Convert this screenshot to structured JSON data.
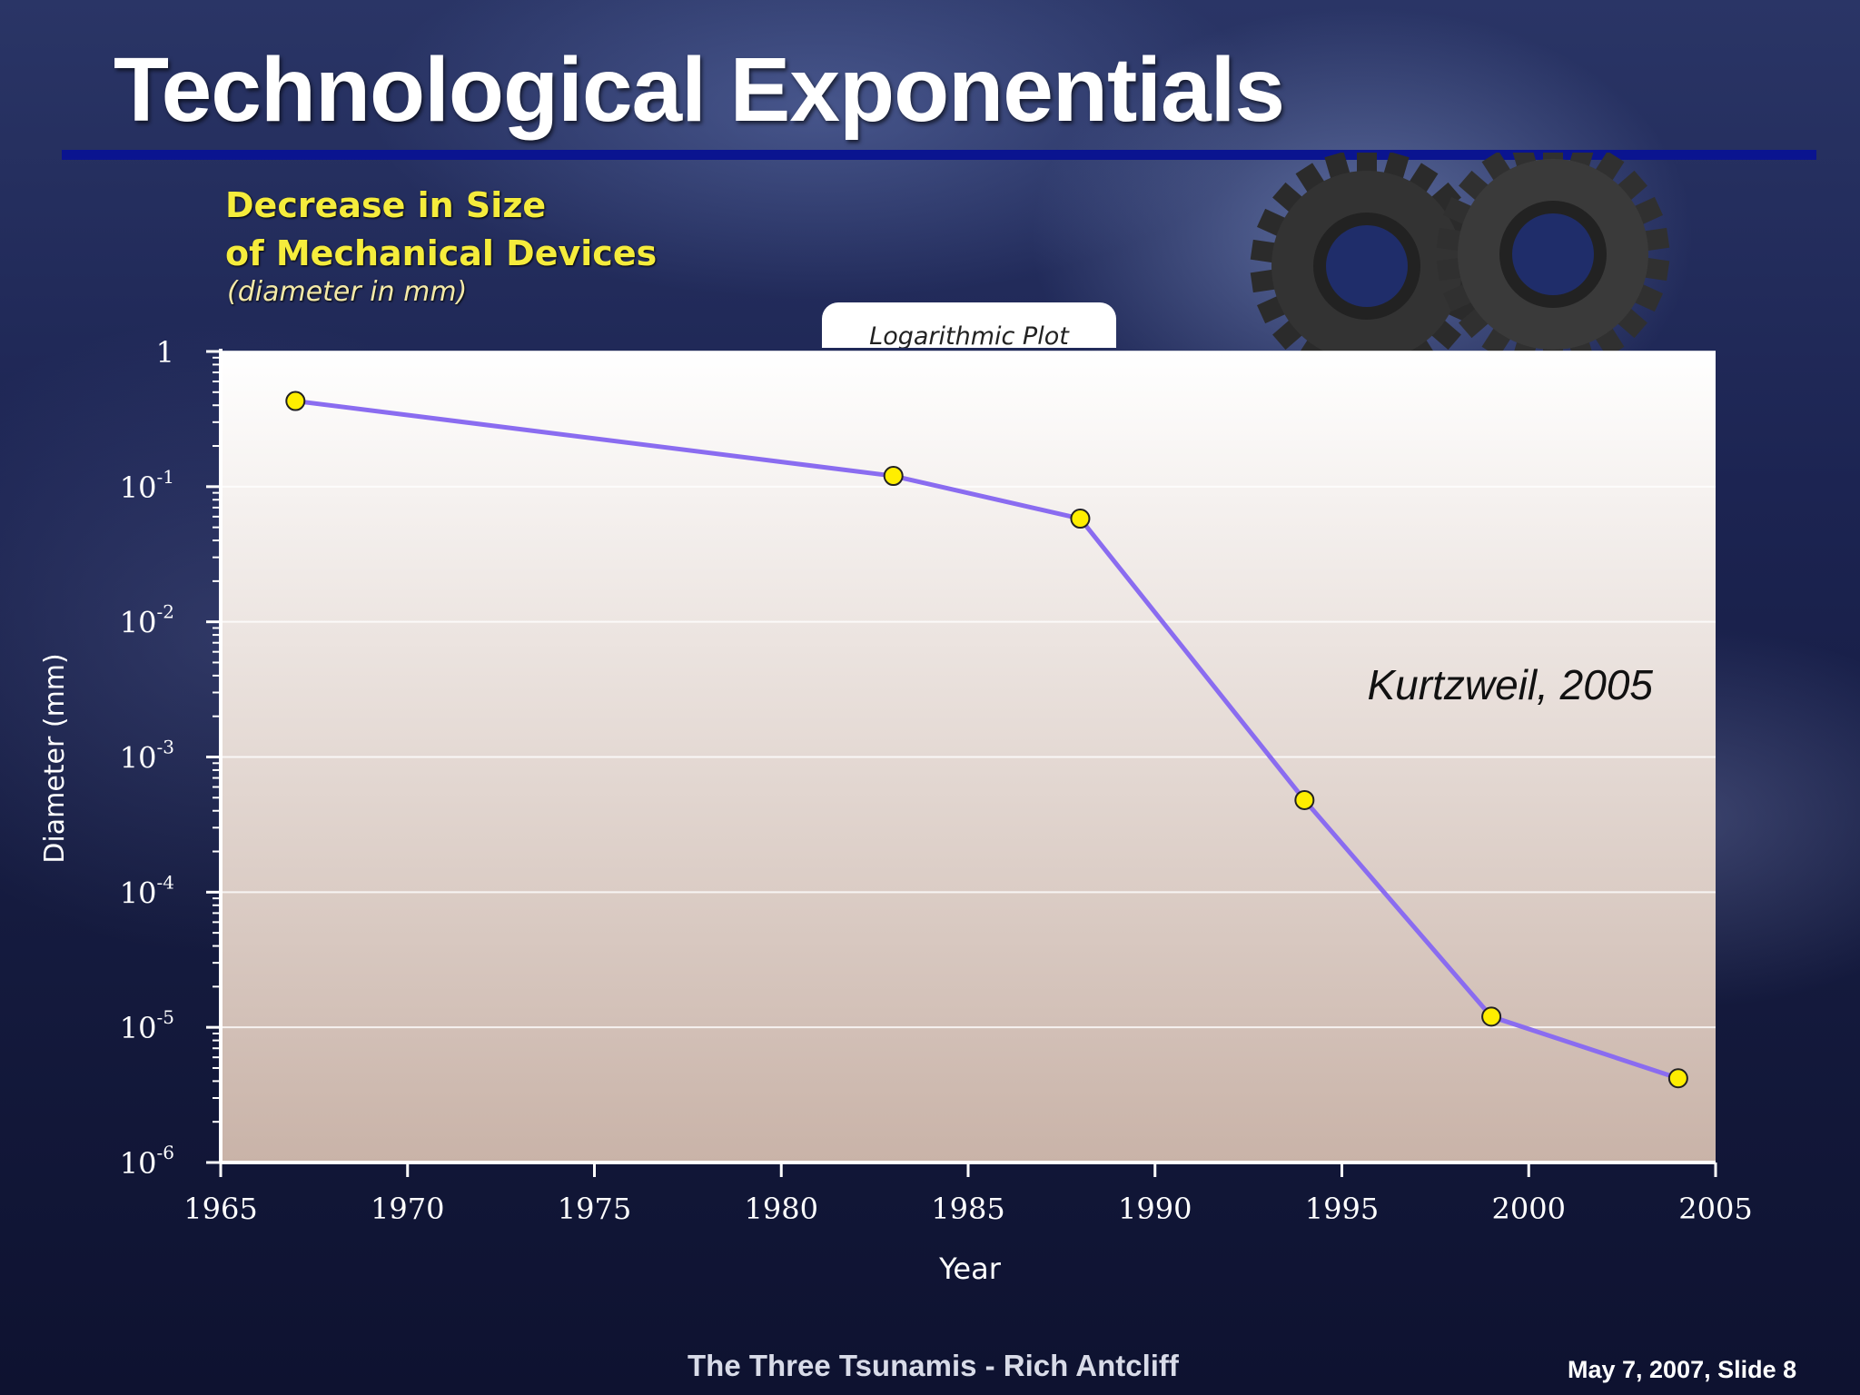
{
  "slide": {
    "title": "Technological Exponentials",
    "footer_center": "The Three Tsunamis - Rich Antcliff",
    "footer_right": "May 7, 2007,  Slide 8"
  },
  "chart_heading": {
    "line1": "Decrease in Size",
    "line2": "of Mechanical Devices",
    "subtitle": "(diameter in mm)"
  },
  "chart_tab_label": "Logarithmic Plot",
  "annotation": "Kurtzweil, 2005",
  "chart_data": {
    "type": "line",
    "xlabel": "Year",
    "ylabel": "Diameter (mm)",
    "x_scale": "linear",
    "y_scale": "log",
    "xlim": [
      1965,
      2005
    ],
    "ylim": [
      1e-06,
      1
    ],
    "x_ticks": [
      "1965",
      "1970",
      "1975",
      "1980",
      "1985",
      "1990",
      "1995",
      "2000",
      "2005"
    ],
    "y_ticks": [
      {
        "base": "1",
        "exp": ""
      },
      {
        "base": "10",
        "exp": "-1"
      },
      {
        "base": "10",
        "exp": "-2"
      },
      {
        "base": "10",
        "exp": "-3"
      },
      {
        "base": "10",
        "exp": "-4"
      },
      {
        "base": "10",
        "exp": "-5"
      },
      {
        "base": "10",
        "exp": "-6"
      }
    ],
    "grid": "horizontal",
    "line_color": "#8a6cf0",
    "marker_color": "#ffee00",
    "x": [
      1967,
      1983,
      1988,
      1994,
      1999,
      2004
    ],
    "y": [
      0.43,
      0.12,
      0.058,
      0.00048,
      1.2e-05,
      4.2e-06
    ]
  }
}
